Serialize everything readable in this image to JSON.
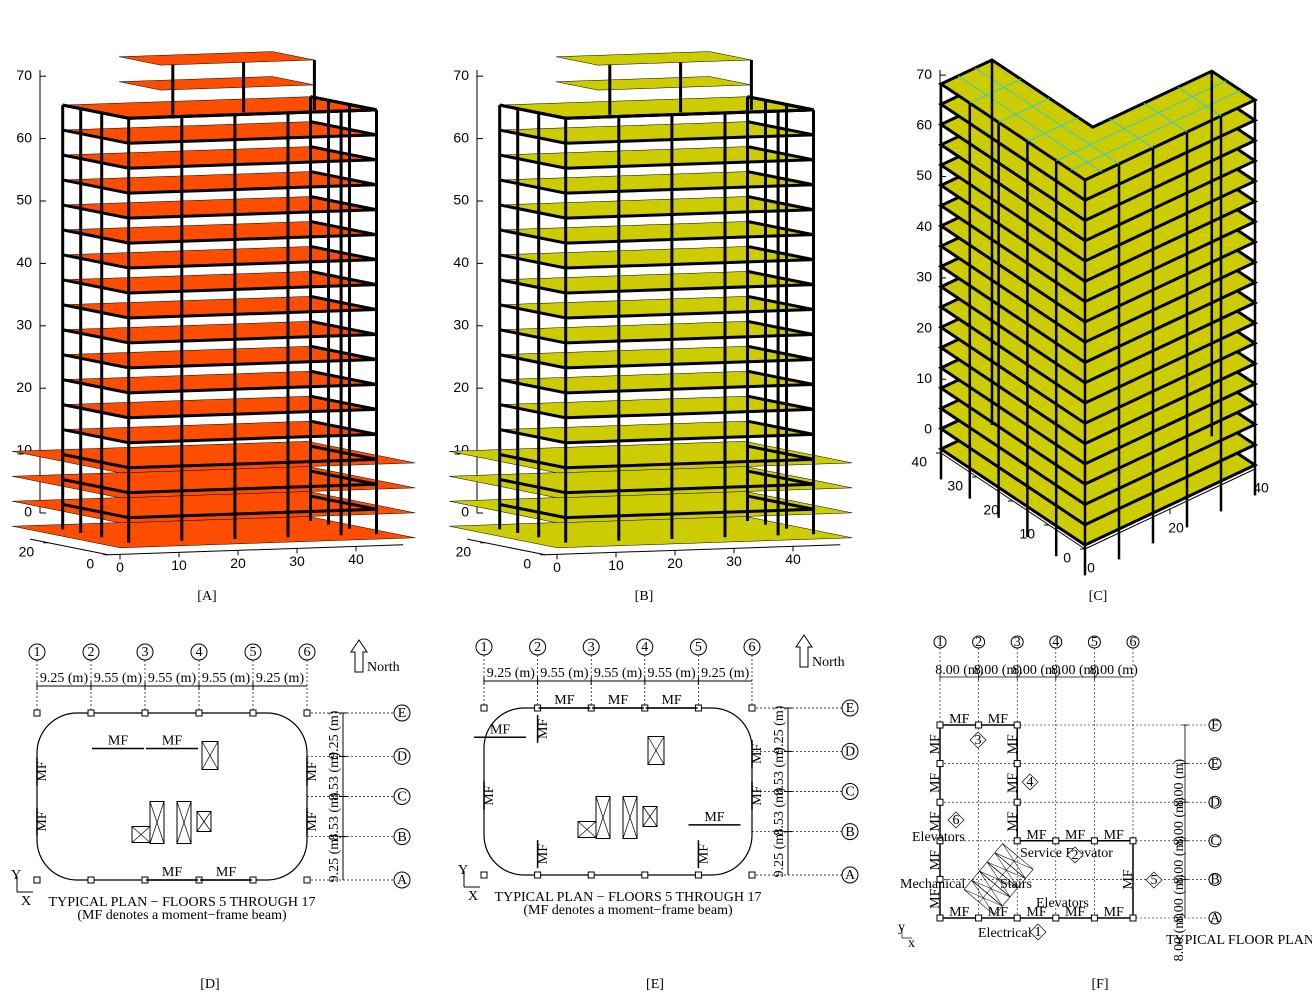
{
  "panels": [
    {
      "label": "[A]",
      "slab_color": "#ff4d00",
      "z_ticks": [
        0,
        10,
        20,
        30,
        40,
        50,
        60,
        70
      ],
      "x_ticks": [
        0,
        10,
        20,
        30,
        40
      ],
      "y_ticks": [
        0,
        20
      ]
    },
    {
      "label": "[B]",
      "slab_color": "#cccc00",
      "z_ticks": [
        0,
        10,
        20,
        30,
        40,
        50,
        60,
        70
      ],
      "x_ticks": [
        0,
        10,
        20,
        30,
        40
      ],
      "y_ticks": [
        0,
        20
      ]
    },
    {
      "label": "[C]",
      "slab_color": "#cccc00",
      "grid_color": "#33cccc",
      "z_ticks": [
        0,
        10,
        20,
        30,
        40,
        50,
        60,
        70
      ],
      "x_ticks": [
        0,
        20,
        40
      ],
      "y_ticks": [
        0,
        10,
        20,
        30,
        40
      ]
    }
  ],
  "plans": [
    {
      "label": "[D]",
      "grid_numbers": [
        1,
        2,
        3,
        4,
        5,
        6
      ],
      "grid_letters": [
        "A",
        "B",
        "C",
        "D",
        "E"
      ],
      "spans": [
        "9.25 (m)",
        "9.55 (m)",
        "9.55 (m)",
        "9.55 (m)",
        "9.25 (m)"
      ],
      "depths": [
        "9.25 (m)",
        "8.53 (m)",
        "8.53 (m)",
        "9.25 (m)"
      ],
      "beam_label": "MF",
      "north": "North",
      "title": "TYPICAL PLAN − FLOORS 5 THROUGH 17",
      "note": "(MF denotes a moment−frame beam)",
      "axis_x": "X",
      "axis_y": "Y"
    },
    {
      "label": "[E]",
      "grid_numbers": [
        1,
        2,
        3,
        4,
        5,
        6
      ],
      "grid_letters": [
        "A",
        "B",
        "C",
        "D",
        "E"
      ],
      "spans": [
        "9.25 (m)",
        "9.55 (m)",
        "9.55 (m)",
        "9.55 (m)",
        "9.25 (m)"
      ],
      "depths": [
        "9.25 (m)",
        "8.53 (m)",
        "8.53 (m)",
        "9.25 (m)"
      ],
      "beam_label": "MF",
      "north": "North",
      "title": "TYPICAL PLAN − FLOORS 5 THROUGH 17",
      "note": "(MF denotes a moment−frame beam)",
      "axis_x": "X",
      "axis_y": "Y"
    },
    {
      "label": "[F]",
      "grid_numbers": [
        1,
        2,
        3,
        4,
        5,
        6
      ],
      "grid_letters": [
        "A",
        "B",
        "C",
        "D",
        "E",
        "F"
      ],
      "spans": [
        "8.00 (m)",
        "8.00 (m)",
        "8.00 (m)",
        "8.00 (m)",
        "8.00 (m)"
      ],
      "depths": [
        "8.00 (m)",
        "8.00 (m)",
        "8.00 (m)",
        "8.00 (m)",
        "8.00 (m)"
      ],
      "beam_label": "MF",
      "rooms": [
        "Elevators",
        "Mechanical",
        "Electrical",
        "Service Elevator",
        "Stairs",
        "Elevators"
      ],
      "frame_marks": [
        1,
        2,
        3,
        4,
        5,
        6
      ],
      "title": "TYPICAL FLOOR PLAN",
      "axis_x": "x",
      "axis_y": "y"
    }
  ]
}
